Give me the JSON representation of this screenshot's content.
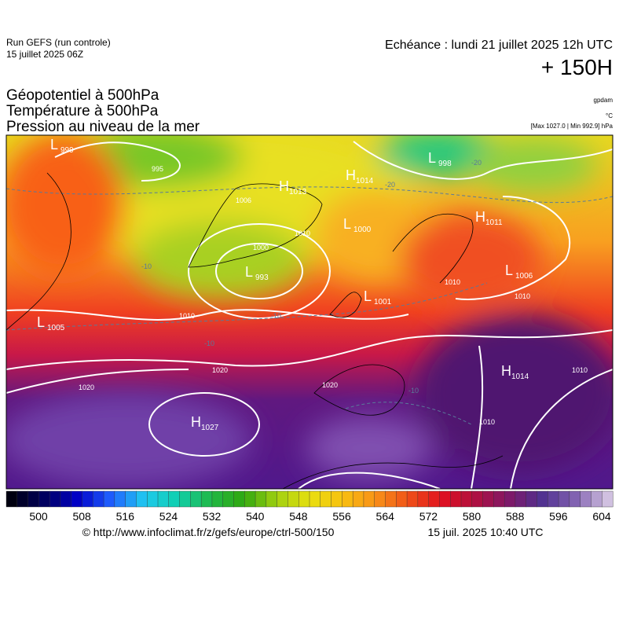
{
  "header": {
    "run": "Run GEFS (run controle)",
    "date": "15 juillet 2025 06Z",
    "echeance": "Echéance : lundi 21 juillet 2025 12h UTC",
    "offset": "+ 150H"
  },
  "titles": [
    "Géopotentiel à 500hPa",
    "Température à 500hPa",
    "Pression au niveau de la mer"
  ],
  "units": [
    "gpdam",
    "°C"
  ],
  "maxmin": "[Max 1027.0 | Min 992.9] hPa",
  "centers": [
    {
      "type": "L",
      "value": "999"
    },
    {
      "type": "H",
      "value": "1013"
    },
    {
      "type": "H",
      "value": "1014"
    },
    {
      "type": "L",
      "value": "998"
    },
    {
      "type": "H",
      "value": "1011"
    },
    {
      "type": "L",
      "value": "1000"
    },
    {
      "type": "L",
      "value": "993"
    },
    {
      "type": "L",
      "value": "1001"
    },
    {
      "type": "L",
      "value": "1006"
    },
    {
      "type": "L",
      "value": "1005"
    },
    {
      "type": "H",
      "value": "1014"
    },
    {
      "type": "H",
      "value": "1027"
    }
  ],
  "isobar_labels": [
    "995",
    "1006",
    "1000",
    "1010",
    "1010",
    "1010",
    "1010",
    "1020",
    "1020",
    "1020",
    "1010",
    "1010"
  ],
  "temperature_labels": [
    "-20",
    "-10",
    "-10",
    "-10",
    "-10",
    "-20"
  ],
  "colorbar": {
    "ticks": [
      "500",
      "508",
      "516",
      "524",
      "532",
      "540",
      "548",
      "556",
      "564",
      "572",
      "580",
      "588",
      "596",
      "604"
    ]
  },
  "footer": {
    "url": "© http://www.infoclimat.fr/z/gefs/europe/ctrl-500/150",
    "time": "15 juil. 2025 10:40 UTC"
  }
}
